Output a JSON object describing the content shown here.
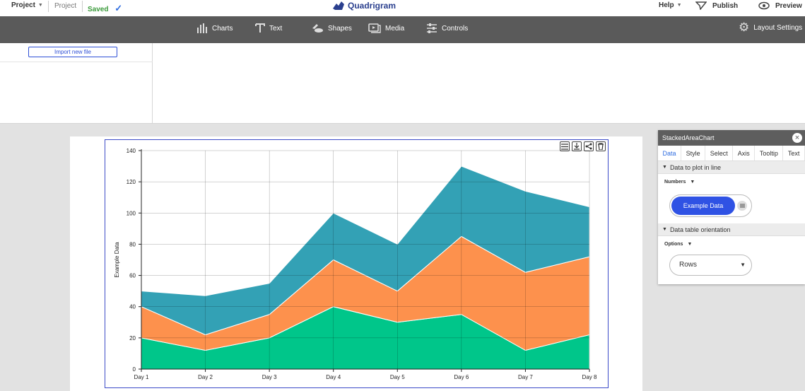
{
  "topbar": {
    "project_menu": "Project",
    "project_name": "Project",
    "saved": "Saved",
    "logo_text": "Quadrigram",
    "help": "Help",
    "publish": "Publish",
    "preview": "Preview"
  },
  "toolbar": {
    "items": [
      {
        "label": "Charts",
        "icon": "bar-chart-icon"
      },
      {
        "label": "Text",
        "icon": "text-icon"
      },
      {
        "label": "Shapes",
        "icon": "shapes-icon"
      },
      {
        "label": "Media",
        "icon": "media-icon"
      },
      {
        "label": "Controls",
        "icon": "sliders-icon"
      }
    ],
    "layout_settings": "Layout Settings"
  },
  "data_panel": {
    "import_button": "Import new file"
  },
  "chart_data": {
    "type": "area",
    "stacked": true,
    "categories": [
      "Day 1",
      "Day 2",
      "Day 3",
      "Day 4",
      "Day 5",
      "Day 6",
      "Day 7",
      "Day 8"
    ],
    "series": [
      {
        "values": [
          20,
          12,
          20,
          40,
          30,
          35,
          12,
          22
        ],
        "color": "#00c68a"
      },
      {
        "values": [
          20,
          10,
          15,
          30,
          20,
          50,
          50,
          50
        ],
        "color": "#fd914d"
      },
      {
        "values": [
          10,
          25,
          20,
          30,
          30,
          45,
          52,
          32
        ],
        "color": "#33a1b5"
      }
    ],
    "ylabel": "Example Data",
    "xlabel": "",
    "ylim": [
      0,
      140
    ],
    "yticks": [
      "0",
      "20",
      "40",
      "60",
      "80",
      "100",
      "120",
      "140"
    ],
    "grid": true
  },
  "settings_panel": {
    "title": "StackedAreaChart",
    "tabs": [
      "Data",
      "Style",
      "Select",
      "Axis",
      "Tooltip",
      "Text"
    ],
    "active_tab": "Data",
    "section1": "Data to plot in line",
    "section1_sublabel": "Numbers",
    "data_pill": "Example Data",
    "section2": "Data table orientation",
    "section2_sublabel": "Options",
    "orientation_value": "Rows"
  }
}
